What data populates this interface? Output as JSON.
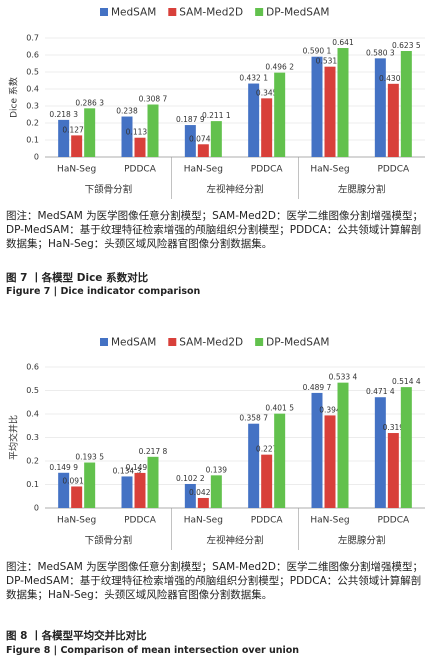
{
  "chart_data": [
    {
      "type": "bar",
      "ylabel": "Dice 系数",
      "ylim": [
        0,
        0.7
      ],
      "yticks": [
        0,
        0.1,
        0.2,
        0.3,
        0.4,
        0.5,
        0.6,
        0.7
      ],
      "grid": true,
      "legend": "top",
      "categories": [
        "HaN-Seg",
        "PDDCA",
        "HaN-Seg",
        "PDDCA",
        "HaN-Seg",
        "PDDCA"
      ],
      "groups": [
        "下颌骨分割",
        "左视神经分割",
        "左腮腺分割"
      ],
      "series": [
        {
          "name": "MedSAM",
          "color": "#4472c4",
          "values": [
            0.2183,
            0.238,
            0.1879,
            0.4321,
            0.5901,
            0.5803
          ],
          "value_labels": [
            "0.218 3",
            "0.238",
            "0.187 9",
            "0.432 1",
            "0.590 1",
            "0.580 3"
          ]
        },
        {
          "name": "SAM-Med2D",
          "color": "#d8403a",
          "values": [
            0.1271,
            0.1134,
            0.0748,
            0.345,
            0.5313,
            0.4305
          ],
          "value_labels": [
            "0.127 1",
            "0.113 4",
            "0.074 8",
            "0.345",
            "0.531 3",
            "0.430 5"
          ]
        },
        {
          "name": "DP-MedSAM",
          "color": "#62c14d",
          "values": [
            0.2863,
            0.3087,
            0.2111,
            0.4962,
            0.641,
            0.6235
          ],
          "value_labels": [
            "0.286 3",
            "0.308 7",
            "0.211 1",
            "0.496 2",
            "0.641",
            "0.623 5"
          ]
        }
      ]
    },
    {
      "type": "bar",
      "ylabel": "平均交并比",
      "ylim": [
        0,
        0.6
      ],
      "yticks": [
        0,
        0.1,
        0.2,
        0.3,
        0.4,
        0.5,
        0.6
      ],
      "grid": true,
      "legend": "top",
      "categories": [
        "HaN-Seg",
        "PDDCA",
        "HaN-Seg",
        "PDDCA",
        "HaN-Seg",
        "PDDCA"
      ],
      "groups": [
        "下颌骨分割",
        "左视神经分割",
        "左腮腺分割"
      ],
      "series": [
        {
          "name": "MedSAM",
          "color": "#4472c4",
          "values": [
            0.1499,
            0.1343,
            0.1022,
            0.3587,
            0.4897,
            0.4714
          ],
          "value_labels": [
            "0.149 9",
            "0.134 3",
            "0.102 2",
            "0.358 7",
            "0.489 7",
            "0.471 4"
          ]
        },
        {
          "name": "SAM-Med2D",
          "color": "#d8403a",
          "values": [
            0.0916,
            0.1493,
            0.0427,
            0.227,
            0.394,
            0.319
          ],
          "value_labels": [
            "0.091 6",
            "0.149 3",
            "0.042 7",
            "0.227",
            "0.394",
            "0.319"
          ]
        },
        {
          "name": "DP-MedSAM",
          "color": "#62c14d",
          "values": [
            0.1935,
            0.2178,
            0.139,
            0.4015,
            0.5334,
            0.5144
          ],
          "value_labels": [
            "0.193 5",
            "0.217 8",
            "0.139",
            "0.401 5",
            "0.533 4",
            "0.514 4"
          ]
        }
      ]
    }
  ],
  "figures": [
    {
      "note": "图注：MedSAM 为医学图像任意分割模型；SAM-Med2D：医学二维图像分割增强模型；DP-MedSAM：基于纹理特征检索增强的颅脑组织分割模型；PDDCA：公共领域计算解剖数据集；HaN-Seg：头颈区域风险器官图像分割数据集。",
      "caption_cn": "图 7 丨各模型 Dice 系数对比",
      "caption_en": "Figure 7 | Dice indicator comparison"
    },
    {
      "note": "图注：MedSAM 为医学图像任意分割模型；SAM-Med2D：医学二维图像分割增强模型；DP-MedSAM：基于纹理特征检索增强的颅脑组织分割模型；PDDCA：公共领域计算解剖数据集；HaN-Seg：头颈区域风险器官图像分割数据集。",
      "caption_cn": "图 8 丨各模型平均交并比对比",
      "caption_en": "Figure 8 | Comparison of mean intersection over union"
    }
  ]
}
